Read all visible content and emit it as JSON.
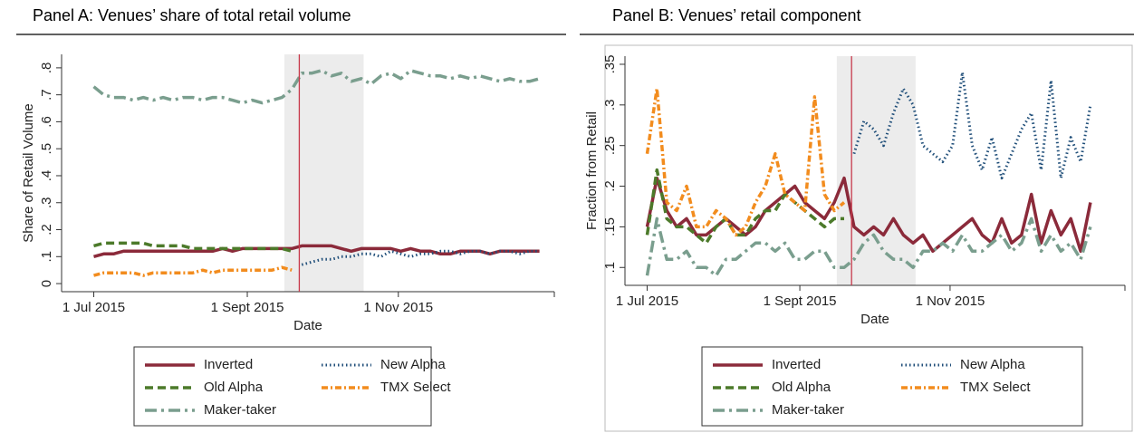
{
  "chart_data": [
    {
      "type": "line",
      "title": "Panel A: Venues’ share of total retail volume",
      "xlabel": "Date",
      "ylabel": "Share of Retail Volume",
      "x": [
        "2015-07-01",
        "2015-07-05",
        "2015-07-09",
        "2015-07-13",
        "2015-07-17",
        "2015-07-21",
        "2015-07-25",
        "2015-07-29",
        "2015-08-02",
        "2015-08-06",
        "2015-08-10",
        "2015-08-14",
        "2015-08-18",
        "2015-08-22",
        "2015-08-26",
        "2015-08-30",
        "2015-09-03",
        "2015-09-07",
        "2015-09-11",
        "2015-09-15",
        "2015-09-19",
        "2015-09-23",
        "2015-09-27",
        "2015-10-01",
        "2015-10-05",
        "2015-10-09",
        "2015-10-13",
        "2015-10-17",
        "2015-10-21",
        "2015-10-25",
        "2015-10-29",
        "2015-11-02",
        "2015-11-06",
        "2015-11-10",
        "2015-11-14",
        "2015-11-18",
        "2015-11-22",
        "2015-11-26",
        "2015-11-30",
        "2015-12-04",
        "2015-12-08",
        "2015-12-12",
        "2015-12-16",
        "2015-12-20",
        "2015-12-24",
        "2015-12-28"
      ],
      "xlim": [
        "2015-06-18",
        "2016-01-03"
      ],
      "xticks": [
        {
          "value": "2015-07-01",
          "label": "1 Jul 2015"
        },
        {
          "value": "2015-09-01",
          "label": "1 Sept 2015"
        },
        {
          "value": "2015-11-01",
          "label": "1 Nov 2015"
        }
      ],
      "ylim": [
        -0.03,
        0.85
      ],
      "yticks": [
        0,
        {
          "value": 0.1,
          "label": ".1"
        },
        {
          "value": 0.2,
          "label": ".2"
        },
        {
          "value": 0.3,
          "label": ".3"
        },
        {
          "value": 0.4,
          "label": ".4"
        },
        {
          "value": 0.5,
          "label": ".5"
        },
        {
          "value": 0.6,
          "label": ".6"
        },
        {
          "value": 0.7,
          "label": ".7"
        },
        {
          "value": 0.8,
          "label": ".8"
        }
      ],
      "shaded_region": [
        "2015-09-16",
        "2015-10-18"
      ],
      "event_date": "2015-09-22",
      "series": [
        {
          "name": "Inverted",
          "color": "#8b2a3a",
          "style": "solid",
          "values": [
            0.1,
            0.11,
            0.11,
            0.12,
            0.12,
            0.12,
            0.12,
            0.12,
            0.12,
            0.12,
            0.12,
            0.12,
            0.12,
            0.13,
            0.12,
            0.13,
            0.13,
            0.13,
            0.13,
            0.13,
            0.13,
            0.14,
            0.14,
            0.14,
            0.14,
            0.13,
            0.12,
            0.13,
            0.13,
            0.13,
            0.13,
            0.12,
            0.13,
            0.12,
            0.12,
            0.11,
            0.11,
            0.12,
            0.12,
            0.12,
            0.11,
            0.12,
            0.12,
            0.12,
            0.12,
            0.12
          ]
        },
        {
          "name": "New Alpha",
          "color": "#1f4e79",
          "style": "dot",
          "values": [
            null,
            null,
            null,
            null,
            null,
            null,
            null,
            null,
            null,
            null,
            null,
            null,
            null,
            null,
            null,
            null,
            null,
            null,
            null,
            null,
            null,
            0.07,
            0.08,
            0.09,
            0.09,
            0.1,
            0.1,
            0.11,
            0.11,
            0.1,
            0.12,
            0.11,
            0.1,
            0.11,
            0.11,
            0.12,
            0.12,
            0.11,
            0.12,
            0.12,
            0.11,
            0.12,
            0.12,
            0.11,
            0.12,
            0.12
          ]
        },
        {
          "name": "Old Alpha",
          "color": "#4c7a2a",
          "style": "dash",
          "values": [
            0.14,
            0.15,
            0.15,
            0.15,
            0.15,
            0.15,
            0.14,
            0.14,
            0.14,
            0.14,
            0.13,
            0.13,
            0.13,
            0.13,
            0.13,
            0.13,
            0.13,
            0.13,
            0.13,
            0.13,
            0.12,
            null,
            null,
            null,
            null,
            null,
            null,
            null,
            null,
            null,
            null,
            null,
            null,
            null,
            null,
            null,
            null,
            null,
            null,
            null,
            null,
            null,
            null,
            null,
            null,
            null
          ]
        },
        {
          "name": "TMX Select",
          "color": "#f28c1e",
          "style": "dashdot",
          "values": [
            0.03,
            0.04,
            0.04,
            0.04,
            0.04,
            0.03,
            0.04,
            0.04,
            0.04,
            0.04,
            0.04,
            0.05,
            0.04,
            0.05,
            0.05,
            0.05,
            0.05,
            0.05,
            0.05,
            0.06,
            0.05,
            null,
            null,
            null,
            null,
            null,
            null,
            null,
            null,
            null,
            null,
            null,
            null,
            null,
            null,
            null,
            null,
            null,
            null,
            null,
            null,
            null,
            null,
            null,
            null,
            null
          ]
        },
        {
          "name": "Maker-taker",
          "color": "#7a9e8e",
          "style": "longdash",
          "values": [
            0.73,
            0.7,
            0.69,
            0.69,
            0.68,
            0.69,
            0.68,
            0.69,
            0.68,
            0.69,
            0.69,
            0.68,
            0.69,
            0.69,
            0.68,
            0.67,
            0.68,
            0.67,
            0.68,
            0.69,
            0.72,
            0.78,
            0.78,
            0.79,
            0.77,
            0.78,
            0.75,
            0.76,
            0.74,
            0.77,
            0.78,
            0.76,
            0.79,
            0.78,
            0.77,
            0.77,
            0.76,
            0.77,
            0.76,
            0.77,
            0.76,
            0.75,
            0.76,
            0.75,
            0.75,
            0.76
          ]
        }
      ]
    },
    {
      "type": "line",
      "title": "Panel B: Venues’ retail component",
      "xlabel": "Date",
      "ylabel": "Fraction from Retail",
      "x": [
        "2015-07-01",
        "2015-07-05",
        "2015-07-09",
        "2015-07-13",
        "2015-07-17",
        "2015-07-21",
        "2015-07-25",
        "2015-07-29",
        "2015-08-02",
        "2015-08-06",
        "2015-08-10",
        "2015-08-14",
        "2015-08-18",
        "2015-08-22",
        "2015-08-26",
        "2015-08-30",
        "2015-09-03",
        "2015-09-07",
        "2015-09-11",
        "2015-09-15",
        "2015-09-19",
        "2015-09-23",
        "2015-09-27",
        "2015-10-01",
        "2015-10-05",
        "2015-10-09",
        "2015-10-13",
        "2015-10-17",
        "2015-10-21",
        "2015-10-25",
        "2015-10-29",
        "2015-11-02",
        "2015-11-06",
        "2015-11-10",
        "2015-11-14",
        "2015-11-18",
        "2015-11-22",
        "2015-11-26",
        "2015-11-30",
        "2015-12-04",
        "2015-12-08",
        "2015-12-12",
        "2015-12-16",
        "2015-12-20",
        "2015-12-24",
        "2015-12-28"
      ],
      "xlim": [
        "2015-06-22",
        "2016-01-11"
      ],
      "xticks": [
        {
          "value": "2015-07-01",
          "label": "1 Jul 2015"
        },
        {
          "value": "2015-09-01",
          "label": "1 Sept 2015"
        },
        {
          "value": "2015-11-01",
          "label": "1 Nov 2015"
        }
      ],
      "ylim": [
        0.078,
        0.36
      ],
      "yticks": [
        {
          "value": 0.1,
          "label": ".1"
        },
        {
          "value": 0.15,
          "label": ".15"
        },
        {
          "value": 0.2,
          "label": ".2"
        },
        {
          "value": 0.25,
          "label": ".25"
        },
        {
          "value": 0.3,
          "label": ".3"
        },
        {
          "value": 0.35,
          "label": ".35"
        }
      ],
      "shaded_region": [
        "2015-09-16",
        "2015-10-18"
      ],
      "event_date": "2015-09-22",
      "series": [
        {
          "name": "Inverted",
          "color": "#8b2a3a",
          "style": "solid",
          "values": [
            0.15,
            0.21,
            0.17,
            0.15,
            0.16,
            0.14,
            0.14,
            0.15,
            0.16,
            0.15,
            0.14,
            0.15,
            0.17,
            0.18,
            0.19,
            0.2,
            0.18,
            0.17,
            0.16,
            0.18,
            0.21,
            0.15,
            0.14,
            0.15,
            0.14,
            0.16,
            0.14,
            0.13,
            0.14,
            0.12,
            0.13,
            0.14,
            0.15,
            0.16,
            0.14,
            0.13,
            0.16,
            0.13,
            0.14,
            0.19,
            0.13,
            0.17,
            0.14,
            0.16,
            0.12,
            0.18
          ]
        },
        {
          "name": "New Alpha",
          "color": "#1f4e79",
          "style": "dot",
          "values": [
            null,
            null,
            null,
            null,
            null,
            null,
            null,
            null,
            null,
            null,
            null,
            null,
            null,
            null,
            null,
            null,
            null,
            null,
            null,
            null,
            null,
            0.24,
            0.28,
            0.27,
            0.25,
            0.29,
            0.32,
            0.3,
            0.25,
            0.24,
            0.23,
            0.25,
            0.34,
            0.25,
            0.22,
            0.26,
            0.21,
            0.24,
            0.27,
            0.29,
            0.22,
            0.33,
            0.21,
            0.26,
            0.23,
            0.3
          ]
        },
        {
          "name": "Old Alpha",
          "color": "#4c7a2a",
          "style": "dash",
          "values": [
            0.14,
            0.22,
            0.16,
            0.15,
            0.15,
            0.14,
            0.13,
            0.15,
            0.16,
            0.14,
            0.14,
            0.16,
            0.17,
            0.17,
            0.19,
            0.18,
            0.17,
            0.16,
            0.15,
            0.16,
            0.16,
            null,
            null,
            null,
            null,
            null,
            null,
            null,
            null,
            null,
            null,
            null,
            null,
            null,
            null,
            null,
            null,
            null,
            null,
            null,
            null,
            null,
            null,
            null,
            null,
            null
          ]
        },
        {
          "name": "TMX Select",
          "color": "#f28c1e",
          "style": "dashdot",
          "values": [
            0.24,
            0.32,
            0.18,
            0.17,
            0.2,
            0.15,
            0.15,
            0.17,
            0.16,
            0.14,
            0.15,
            0.18,
            0.2,
            0.24,
            0.19,
            0.18,
            0.17,
            0.31,
            0.19,
            0.17,
            0.18,
            null,
            null,
            null,
            null,
            null,
            null,
            null,
            null,
            null,
            null,
            null,
            null,
            null,
            null,
            null,
            null,
            null,
            null,
            null,
            null,
            null,
            null,
            null,
            null,
            null
          ]
        },
        {
          "name": "Maker-taker",
          "color": "#7a9e8e",
          "style": "longdash",
          "values": [
            0.09,
            0.16,
            0.11,
            0.11,
            0.12,
            0.1,
            0.1,
            0.09,
            0.11,
            0.11,
            0.12,
            0.13,
            0.13,
            0.12,
            0.13,
            0.11,
            0.11,
            0.12,
            0.12,
            0.1,
            0.1,
            0.11,
            0.13,
            0.14,
            0.12,
            0.11,
            0.11,
            0.1,
            0.12,
            0.12,
            0.13,
            0.12,
            0.14,
            0.12,
            0.12,
            0.13,
            0.14,
            0.12,
            0.13,
            0.16,
            0.12,
            0.14,
            0.12,
            0.13,
            0.11,
            0.15
          ]
        }
      ]
    }
  ]
}
